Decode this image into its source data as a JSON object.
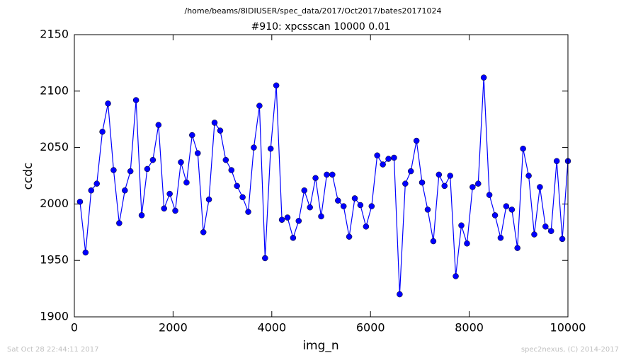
{
  "chart_data": {
    "type": "line",
    "subtitle": "/home/beams/8IDIUSER/spec_data/2017/Oct2017/bates20171024",
    "title": "#910: xpcsscan 10000 0.01",
    "x_label": "img_n",
    "y_label": "ccdc",
    "footer_left": "Sat Oct 28 22:44:11 2017",
    "footer_right": "spec2nexus, (C) 2014-2017",
    "color": "#0000ff",
    "marker": "circle",
    "grid": false,
    "xlim": [
      0,
      10000
    ],
    "xticks": [
      0,
      2000,
      4000,
      6000,
      8000,
      10000
    ],
    "ylim": [
      1900,
      2150
    ],
    "yticks": [
      1900,
      1950,
      2000,
      2050,
      2100,
      2150
    ],
    "x": [
      114,
      227,
      341,
      455,
      568,
      682,
      795,
      909,
      1023,
      1136,
      1250,
      1364,
      1477,
      1591,
      1705,
      1818,
      1932,
      2045,
      2159,
      2273,
      2386,
      2500,
      2614,
      2727,
      2841,
      2955,
      3068,
      3182,
      3295,
      3409,
      3523,
      3636,
      3750,
      3864,
      3977,
      4091,
      4205,
      4318,
      4432,
      4545,
      4659,
      4773,
      4886,
      5000,
      5114,
      5227,
      5341,
      5455,
      5568,
      5682,
      5795,
      5909,
      6023,
      6136,
      6250,
      6364,
      6477,
      6591,
      6705,
      6818,
      6932,
      7045,
      7159,
      7273,
      7386,
      7500,
      7614,
      7727,
      7841,
      7955,
      8068,
      8182,
      8295,
      8409,
      8523,
      8636,
      8750,
      8864,
      8977,
      9091,
      9205,
      9318,
      9432,
      9545,
      9659,
      9773,
      9886,
      10000
    ],
    "values": [
      2002,
      1957,
      2012,
      2018,
      2064,
      2089,
      2030,
      1983,
      2012,
      2029,
      2092,
      1990,
      2031,
      2039,
      2070,
      1996,
      2009,
      1994,
      2037,
      2019,
      2061,
      2045,
      1975,
      2004,
      2072,
      2065,
      2039,
      2030,
      2016,
      2006,
      1993,
      2050,
      2087,
      1952,
      2049,
      2105,
      1986,
      1988,
      1970,
      1985,
      2012,
      1997,
      2023,
      1989,
      2026,
      2026,
      2003,
      1998,
      1971,
      2005,
      1999,
      1980,
      1998,
      2043,
      2035,
      2040,
      2041,
      1920,
      2018,
      2029,
      2056,
      2019,
      1995,
      1967,
      2026,
      2016,
      2025,
      1936,
      1981,
      1965,
      2015,
      2018,
      2112,
      2008,
      1990,
      1970,
      1998,
      1995,
      1961,
      2049,
      2025,
      1973,
      2015,
      1980,
      1976,
      2038,
      1969,
      2038
    ]
  }
}
